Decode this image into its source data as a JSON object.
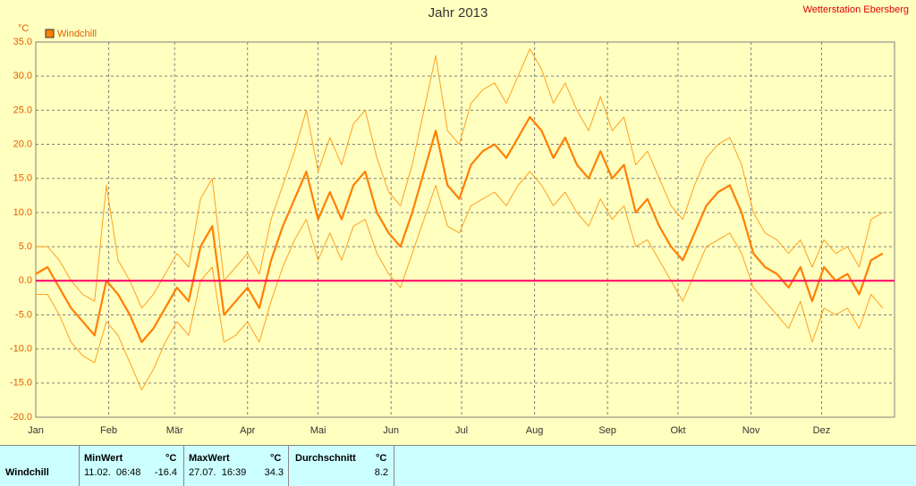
{
  "chart_data": {
    "type": "line",
    "title": "Jahr 2013",
    "station": "Wetterstation Ebersberg",
    "y_label": "°C",
    "xlim": [
      0,
      365
    ],
    "xticks": [
      {
        "value": 0,
        "label": "Jan"
      },
      {
        "value": 31,
        "label": "Feb"
      },
      {
        "value": 59,
        "label": "Mär"
      },
      {
        "value": 90,
        "label": "Apr"
      },
      {
        "value": 120,
        "label": "Mai"
      },
      {
        "value": 151,
        "label": "Jun"
      },
      {
        "value": 181,
        "label": "Jul"
      },
      {
        "value": 212,
        "label": "Aug"
      },
      {
        "value": 243,
        "label": "Sep"
      },
      {
        "value": 273,
        "label": "Okt"
      },
      {
        "value": 304,
        "label": "Nov"
      },
      {
        "value": 334,
        "label": "Dez"
      }
    ],
    "ylim": [
      -20,
      35
    ],
    "yticks": [
      {
        "value": -20,
        "label": "-20.0"
      },
      {
        "value": -15,
        "label": "-15.0"
      },
      {
        "value": -10,
        "label": "-10.0"
      },
      {
        "value": -5,
        "label": "-5.0"
      },
      {
        "value": 0,
        "label": "0.0"
      },
      {
        "value": 5,
        "label": "5.0"
      },
      {
        "value": 10,
        "label": "10.0"
      },
      {
        "value": 15,
        "label": "15.0"
      },
      {
        "value": 20,
        "label": "20.0"
      },
      {
        "value": 25,
        "label": "25.0"
      },
      {
        "value": 30,
        "label": "30.0"
      },
      {
        "value": 35,
        "label": "35.0"
      }
    ],
    "grid": true,
    "legend": "top-left",
    "reference_line": {
      "value": 0,
      "color": "#ff0066"
    },
    "x": [
      0,
      5,
      10,
      15,
      20,
      25,
      30,
      35,
      40,
      45,
      50,
      55,
      60,
      65,
      70,
      75,
      80,
      85,
      90,
      95,
      100,
      105,
      110,
      115,
      120,
      125,
      130,
      135,
      140,
      145,
      150,
      155,
      160,
      165,
      170,
      175,
      180,
      185,
      190,
      195,
      200,
      205,
      210,
      215,
      220,
      225,
      230,
      235,
      240,
      245,
      250,
      255,
      260,
      265,
      270,
      275,
      280,
      285,
      290,
      295,
      300,
      305,
      310,
      315,
      320,
      325,
      330,
      335,
      340,
      345,
      350,
      355,
      360
    ],
    "series": [
      {
        "color": "#ffa020",
        "width": 1,
        "values": [
          5,
          5,
          3,
          0,
          -2,
          -3,
          14,
          3,
          0,
          -4,
          -2,
          1,
          4,
          2,
          12,
          15,
          0,
          2,
          4,
          1,
          9,
          14,
          19,
          25,
          16,
          21,
          17,
          23,
          25,
          18,
          13,
          11,
          17,
          25,
          33,
          22,
          20,
          26,
          28,
          29,
          26,
          30,
          34,
          31,
          26,
          29,
          25,
          22,
          27,
          22,
          24,
          17,
          19,
          15,
          11,
          9,
          14,
          18,
          20,
          21,
          17,
          10,
          7,
          6,
          4,
          6,
          2,
          6,
          4,
          5,
          2,
          9,
          10
        ]
      },
      {
        "color": "#ffa020",
        "width": 1,
        "values": [
          -2,
          -2,
          -5,
          -9,
          -11,
          -12,
          -6,
          -8,
          -12,
          -16,
          -13,
          -9,
          -6,
          -8,
          0,
          2,
          -9,
          -8,
          -6,
          -9,
          -3,
          2,
          6,
          9,
          3,
          7,
          3,
          8,
          9,
          4,
          1,
          -1,
          4,
          9,
          14,
          8,
          7,
          11,
          12,
          13,
          11,
          14,
          16,
          14,
          11,
          13,
          10,
          8,
          12,
          9,
          11,
          5,
          6,
          3,
          0,
          -3,
          1,
          5,
          6,
          7,
          4,
          -1,
          -3,
          -5,
          -7,
          -3,
          -9,
          -4,
          -5,
          -4,
          -7,
          -2,
          -4
        ]
      },
      {
        "name": "Windchill",
        "color": "#ff8000",
        "width": 2.2,
        "values": [
          1,
          2,
          -1,
          -4,
          -6,
          -8,
          0,
          -2,
          -5,
          -9,
          -7,
          -4,
          -1,
          -3,
          5,
          8,
          -5,
          -3,
          -1,
          -4,
          3,
          8,
          12,
          16,
          9,
          13,
          9,
          14,
          16,
          10,
          7,
          5,
          10,
          16,
          22,
          14,
          12,
          17,
          19,
          20,
          18,
          21,
          24,
          22,
          18,
          21,
          17,
          15,
          19,
          15,
          17,
          10,
          12,
          8,
          5,
          3,
          7,
          11,
          13,
          14,
          10,
          4,
          2,
          1,
          -1,
          2,
          -3,
          2,
          0,
          1,
          -2,
          3,
          4
        ]
      }
    ]
  },
  "table": {
    "headers": [
      "MinWert",
      "°C",
      "MaxWert",
      "°C",
      "Durchschnitt",
      "°C"
    ],
    "rows": [
      [
        "Windchill",
        "11.02.  06:48",
        "-16.4",
        "27.07.  16:39",
        "34.3",
        "8.2"
      ]
    ]
  }
}
